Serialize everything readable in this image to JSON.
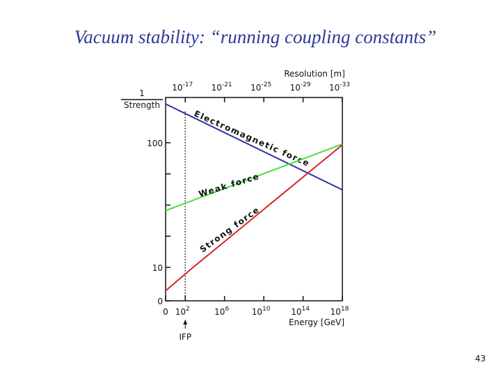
{
  "slide": {
    "title": "Vacuum stability: “running coupling constants”",
    "page_number": "43"
  },
  "chart_data": {
    "type": "line",
    "x_label": "Energy [GeV]",
    "x2_label": "Resolution [m]",
    "y_label": {
      "numerator": "1",
      "denominator": "Strength"
    },
    "xlim": [
      0,
      18
    ],
    "xticks": [
      0,
      {
        "value": 2,
        "label": "10",
        "power": "2"
      },
      {
        "value": 6,
        "label": "10",
        "power": "6"
      },
      {
        "value": 10,
        "label": "10",
        "power": "10"
      },
      {
        "value": 14,
        "label": "10",
        "power": "14"
      },
      {
        "value": 18,
        "label": "10",
        "power": "18"
      }
    ],
    "x2lim": [
      -15,
      -33
    ],
    "x2ticks": [
      {
        "value": -17,
        "label": "10",
        "power": "-17"
      },
      {
        "value": -21,
        "label": "10",
        "power": "-21"
      },
      {
        "value": -25,
        "label": "10",
        "power": "-25"
      },
      {
        "value": -29,
        "label": "10",
        "power": "-29"
      },
      {
        "value": -33,
        "label": "10",
        "power": "-33"
      }
    ],
    "ylim": [
      0,
      133
    ],
    "yticks": [
      0,
      10,
      100
    ],
    "yminor": [
      32.5,
      55,
      77.5
    ],
    "label_color": "#d03030",
    "series": [
      {
        "name": "Electromagnetic force",
        "color": "#2a35a8",
        "x": [
          0,
          18
        ],
        "values": [
          128,
          66
        ]
      },
      {
        "name": "Weak force",
        "color": "#44e03c",
        "x": [
          0,
          18
        ],
        "values": [
          51,
          99
        ]
      },
      {
        "name": "Strong force",
        "color": "#d42424",
        "x": [
          0,
          2.8,
          18
        ],
        "values": [
          3,
          10,
          98.5
        ]
      }
    ],
    "marker": {
      "x": 2,
      "label": "IFP"
    }
  }
}
